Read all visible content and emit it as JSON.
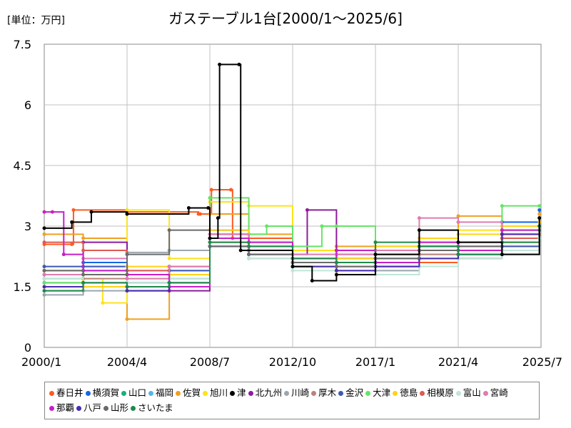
{
  "unit_label": "[単位：万円]",
  "chart_data": {
    "type": "line",
    "title": "ガステーブル1台[2000/1～2025/6]",
    "ylim": [
      0,
      7.5
    ],
    "yticks": [
      "0",
      "1.5",
      "3",
      "4.5",
      "6",
      "7.5"
    ],
    "x_tick_labels": [
      "2000/1",
      "2004/4",
      "2008/7",
      "2012/10",
      "2017/1",
      "2021/4",
      "2025/7"
    ],
    "grid": true,
    "legend_position": "bottom",
    "series": [
      {
        "name": "春日井",
        "color": "#ff5a1f",
        "points": [
          [
            "2000/1",
            2.55
          ],
          [
            "2001/6",
            2.55
          ],
          [
            "2001/7",
            3.4
          ],
          [
            "2004/4",
            3.35
          ],
          [
            "2007/12",
            3.3
          ],
          [
            "2008/1",
            3.3
          ],
          [
            "2008/7",
            3.3
          ],
          [
            "2008/8",
            3.9
          ],
          [
            "2009/8",
            3.9
          ],
          [
            "2009/9",
            2.7
          ],
          [
            "2012/10",
            2.1
          ],
          [
            "2017/1",
            2.1
          ],
          [
            "2021/4",
            2.5
          ],
          [
            "2025/6",
            3.1
          ]
        ]
      },
      {
        "name": "横須賀",
        "color": "#1565e6",
        "points": [
          [
            "2000/1",
            1.6
          ],
          [
            "2002/1",
            2.1
          ],
          [
            "2004/4",
            1.4
          ],
          [
            "2006/6",
            1.8
          ],
          [
            "2008/7",
            2.9
          ],
          [
            "2010/7",
            2.4
          ],
          [
            "2012/10",
            2.0
          ],
          [
            "2015/1",
            2.1
          ],
          [
            "2017/1",
            2.2
          ],
          [
            "2019/4",
            2.6
          ],
          [
            "2021/4",
            2.3
          ],
          [
            "2023/7",
            3.1
          ],
          [
            "2025/6",
            3.4
          ]
        ]
      },
      {
        "name": "山口",
        "color": "#17b07b",
        "points": [
          [
            "2000/1",
            1.7
          ],
          [
            "2002/1",
            1.9
          ],
          [
            "2004/4",
            1.6
          ],
          [
            "2006/6",
            1.7
          ],
          [
            "2008/7",
            2.8
          ],
          [
            "2010/7",
            2.3
          ],
          [
            "2012/10",
            2.1
          ],
          [
            "2015/1",
            2.0
          ],
          [
            "2017/1",
            2.2
          ],
          [
            "2019/4",
            2.5
          ],
          [
            "2021/4",
            2.4
          ],
          [
            "2023/7",
            2.9
          ],
          [
            "2025/6",
            3.0
          ]
        ]
      },
      {
        "name": "福岡",
        "color": "#52b6e8",
        "points": [
          [
            "2000/1",
            1.9
          ],
          [
            "2002/1",
            2.0
          ],
          [
            "2004/4",
            1.9
          ],
          [
            "2006/6",
            1.9
          ],
          [
            "2008/7",
            2.7
          ],
          [
            "2010/7",
            2.5
          ],
          [
            "2012/10",
            2.0
          ],
          [
            "2015/1",
            2.1
          ],
          [
            "2017/1",
            2.0
          ],
          [
            "2019/4",
            2.4
          ],
          [
            "2021/4",
            2.6
          ],
          [
            "2023/7",
            3.0
          ],
          [
            "2025/6",
            3.2
          ]
        ]
      },
      {
        "name": "佐賀",
        "color": "#f0a020",
        "points": [
          [
            "2000/1",
            2.8
          ],
          [
            "2002/1",
            2.7
          ],
          [
            "2004/4",
            0.7
          ],
          [
            "2006/6",
            2.0
          ],
          [
            "2008/7",
            3.3
          ],
          [
            "2010/7",
            2.8
          ],
          [
            "2012/10",
            2.2
          ],
          [
            "2015/1",
            2.5
          ],
          [
            "2017/1",
            2.3
          ],
          [
            "2019/4",
            2.6
          ],
          [
            "2021/4",
            3.25
          ],
          [
            "2023/7",
            2.7
          ],
          [
            "2025/6",
            3.3
          ]
        ]
      },
      {
        "name": "旭川",
        "color": "#ffe21a",
        "points": [
          [
            "2000/1",
            1.5
          ],
          [
            "2002/1",
            1.7
          ],
          [
            "2003/1",
            1.1
          ],
          [
            "2004/4",
            3.4
          ],
          [
            "2006/6",
            2.2
          ],
          [
            "2008/7",
            3.6
          ],
          [
            "2010/7",
            3.5
          ],
          [
            "2012/10",
            2.4
          ],
          [
            "2015/1",
            1.8
          ],
          [
            "2017/1",
            2.4
          ],
          [
            "2019/4",
            2.5
          ],
          [
            "2021/4",
            2.9
          ],
          [
            "2023/7",
            2.6
          ],
          [
            "2025/6",
            2.8
          ]
        ]
      },
      {
        "name": "津",
        "color": "#000000",
        "points": [
          [
            "2000/1",
            2.95
          ],
          [
            "2001/6",
            3.1
          ],
          [
            "2002/6",
            3.35
          ],
          [
            "2004/4",
            3.3
          ],
          [
            "2007/6",
            3.45
          ],
          [
            "2008/6",
            3.45
          ],
          [
            "2008/7",
            2.7
          ],
          [
            "2008/12",
            3.2
          ],
          [
            "2009/1",
            7.0
          ],
          [
            "2010/1",
            7.0
          ],
          [
            "2010/2",
            2.4
          ],
          [
            "2012/10",
            2.0
          ],
          [
            "2013/10",
            1.65
          ],
          [
            "2015/1",
            1.8
          ],
          [
            "2017/1",
            2.3
          ],
          [
            "2019/4",
            2.9
          ],
          [
            "2021/4",
            2.6
          ],
          [
            "2023/7",
            2.3
          ],
          [
            "2025/6",
            3.2
          ]
        ]
      },
      {
        "name": "北九州",
        "color": "#8e1b9e",
        "points": [
          [
            "2000/1",
            1.8
          ],
          [
            "2002/1",
            2.6
          ],
          [
            "2004/4",
            1.6
          ],
          [
            "2006/6",
            1.4
          ],
          [
            "2008/7",
            2.8
          ],
          [
            "2010/7",
            2.5
          ],
          [
            "2012/10",
            2.3
          ],
          [
            "2013/7",
            3.4
          ],
          [
            "2015/1",
            2.2
          ],
          [
            "2017/1",
            2.0
          ],
          [
            "2019/4",
            2.5
          ],
          [
            "2021/4",
            2.2
          ],
          [
            "2023/7",
            2.8
          ],
          [
            "2025/6",
            3.1
          ]
        ]
      },
      {
        "name": "川崎",
        "color": "#9aa6b0",
        "points": [
          [
            "2000/1",
            1.3
          ],
          [
            "2002/1",
            1.4
          ],
          [
            "2004/4",
            2.35
          ],
          [
            "2006/6",
            2.4
          ],
          [
            "2008/7",
            2.6
          ],
          [
            "2010/7",
            2.2
          ],
          [
            "2012/10",
            2.1
          ],
          [
            "2015/1",
            1.9
          ],
          [
            "2017/1",
            1.9
          ],
          [
            "2019/4",
            2.3
          ],
          [
            "2021/4",
            2.5
          ],
          [
            "2023/7",
            2.7
          ],
          [
            "2025/6",
            2.9
          ]
        ]
      },
      {
        "name": "厚木",
        "color": "#b8847a",
        "points": [
          [
            "2000/1",
            1.4
          ],
          [
            "2002/1",
            1.7
          ],
          [
            "2004/4",
            1.5
          ],
          [
            "2006/6",
            1.6
          ],
          [
            "2008/7",
            2.9
          ],
          [
            "2010/7",
            2.3
          ],
          [
            "2012/10",
            2.0
          ],
          [
            "2015/1",
            2.2
          ],
          [
            "2017/1",
            2.4
          ],
          [
            "2019/4",
            2.3
          ],
          [
            "2021/4",
            2.2
          ],
          [
            "2023/7",
            2.6
          ],
          [
            "2025/6",
            2.8
          ]
        ]
      },
      {
        "name": "金沢",
        "color": "#3c58b8",
        "points": [
          [
            "2000/1",
            2.0
          ],
          [
            "2002/1",
            2.0
          ],
          [
            "2004/4",
            1.8
          ],
          [
            "2006/6",
            1.9
          ],
          [
            "2008/7",
            2.5
          ],
          [
            "2010/7",
            2.6
          ],
          [
            "2012/10",
            2.2
          ],
          [
            "2015/1",
            2.3
          ],
          [
            "2017/1",
            2.1
          ],
          [
            "2019/4",
            2.5
          ],
          [
            "2021/4",
            2.3
          ],
          [
            "2023/7",
            2.5
          ],
          [
            "2025/6",
            3.0
          ]
        ]
      },
      {
        "name": "大津",
        "color": "#66e466",
        "points": [
          [
            "2000/1",
            1.6
          ],
          [
            "2002/1",
            1.8
          ],
          [
            "2004/4",
            1.7
          ],
          [
            "2006/6",
            1.5
          ],
          [
            "2008/7",
            3.7
          ],
          [
            "2010/7",
            2.8
          ],
          [
            "2011/6",
            3.0
          ],
          [
            "2012/10",
            2.5
          ],
          [
            "2014/4",
            3.0
          ],
          [
            "2015/1",
            3.0
          ],
          [
            "2017/1",
            2.5
          ],
          [
            "2019/4",
            2.2
          ],
          [
            "2021/4",
            2.3
          ],
          [
            "2023/7",
            3.5
          ],
          [
            "2025/6",
            3.5
          ]
        ]
      },
      {
        "name": "徳島",
        "color": "#ffd21a",
        "points": [
          [
            "2000/1",
            1.9
          ],
          [
            "2002/1",
            1.5
          ],
          [
            "2004/4",
            2.0
          ],
          [
            "2006/6",
            1.8
          ],
          [
            "2008/7",
            2.9
          ],
          [
            "2010/7",
            2.4
          ],
          [
            "2012/10",
            2.0
          ],
          [
            "2015/1",
            2.2
          ],
          [
            "2017/1",
            2.5
          ],
          [
            "2019/4",
            2.7
          ],
          [
            "2021/4",
            2.8
          ],
          [
            "2023/7",
            3.0
          ],
          [
            "2025/6",
            3.1
          ]
        ]
      },
      {
        "name": "相模原",
        "color": "#e05a4f",
        "points": [
          [
            "2000/1",
            2.6
          ],
          [
            "2002/1",
            2.4
          ],
          [
            "2004/4",
            1.9
          ],
          [
            "2006/6",
            2.0
          ],
          [
            "2008/7",
            2.6
          ],
          [
            "2010/7",
            2.4
          ],
          [
            "2012/10",
            2.1
          ],
          [
            "2015/1",
            2.0
          ],
          [
            "2017/1",
            2.3
          ],
          [
            "2019/4",
            2.4
          ],
          [
            "2021/4",
            2.6
          ],
          [
            "2023/7",
            2.7
          ],
          [
            "2025/6",
            3.0
          ]
        ]
      },
      {
        "name": "富山",
        "color": "#bfe6d8",
        "points": [
          [
            "2000/1",
            1.7
          ],
          [
            "2002/1",
            1.8
          ],
          [
            "2004/4",
            1.6
          ],
          [
            "2006/6",
            1.7
          ],
          [
            "2008/7",
            2.6
          ],
          [
            "2010/7",
            2.2
          ],
          [
            "2012/10",
            1.9
          ],
          [
            "2015/1",
            2.0
          ],
          [
            "2017/1",
            1.8
          ],
          [
            "2019/4",
            2.0
          ],
          [
            "2021/4",
            2.2
          ],
          [
            "2023/7",
            2.4
          ],
          [
            "2025/6",
            2.7
          ]
        ]
      },
      {
        "name": "宮崎",
        "color": "#e07bb0",
        "points": [
          [
            "2000/1",
            1.8
          ],
          [
            "2002/1",
            2.2
          ],
          [
            "2004/4",
            1.7
          ],
          [
            "2006/6",
            2.0
          ],
          [
            "2008/7",
            2.8
          ],
          [
            "2010/7",
            2.4
          ],
          [
            "2012/10",
            2.3
          ],
          [
            "2015/1",
            2.3
          ],
          [
            "2017/1",
            2.4
          ],
          [
            "2019/4",
            3.2
          ],
          [
            "2021/4",
            3.1
          ],
          [
            "2023/7",
            2.8
          ],
          [
            "2025/6",
            2.9
          ]
        ]
      },
      {
        "name": "那覇",
        "color": "#c81ec8",
        "points": [
          [
            "2000/1",
            3.35
          ],
          [
            "2000/6",
            3.35
          ],
          [
            "2001/1",
            2.3
          ],
          [
            "2002/1",
            1.9
          ],
          [
            "2004/4",
            1.8
          ],
          [
            "2006/6",
            1.5
          ],
          [
            "2008/7",
            2.7
          ],
          [
            "2010/7",
            2.6
          ],
          [
            "2012/10",
            2.2
          ],
          [
            "2015/1",
            2.4
          ],
          [
            "2017/1",
            2.1
          ],
          [
            "2019/4",
            2.6
          ],
          [
            "2021/4",
            2.4
          ],
          [
            "2023/7",
            2.9
          ],
          [
            "2025/6",
            3.0
          ]
        ]
      },
      {
        "name": "八戸",
        "color": "#4a2cb0",
        "points": [
          [
            "2000/1",
            1.5
          ],
          [
            "2002/1",
            1.6
          ],
          [
            "2004/4",
            1.4
          ],
          [
            "2006/6",
            1.6
          ],
          [
            "2008/7",
            2.5
          ],
          [
            "2010/7",
            2.3
          ],
          [
            "2012/10",
            2.0
          ],
          [
            "2015/1",
            1.9
          ],
          [
            "2017/1",
            2.0
          ],
          [
            "2019/4",
            2.2
          ],
          [
            "2021/4",
            2.3
          ],
          [
            "2023/7",
            2.8
          ],
          [
            "2025/6",
            3.0
          ]
        ]
      },
      {
        "name": "山形",
        "color": "#6a6a6a",
        "points": [
          [
            "2000/1",
            1.9
          ],
          [
            "2002/1",
            1.8
          ],
          [
            "2004/4",
            2.3
          ],
          [
            "2006/6",
            2.9
          ],
          [
            "2008/7",
            2.5
          ],
          [
            "2010/7",
            2.3
          ],
          [
            "2012/10",
            2.1
          ],
          [
            "2015/1",
            2.0
          ],
          [
            "2017/1",
            2.2
          ],
          [
            "2019/4",
            2.4
          ],
          [
            "2021/4",
            2.5
          ],
          [
            "2023/7",
            2.3
          ],
          [
            "2025/6",
            2.9
          ]
        ]
      },
      {
        "name": "さいたま",
        "color": "#1e8a4a",
        "points": [
          [
            "2000/1",
            1.4
          ],
          [
            "2002/1",
            1.6
          ],
          [
            "2004/4",
            1.5
          ],
          [
            "2006/6",
            1.6
          ],
          [
            "2008/7",
            2.6
          ],
          [
            "2010/7",
            2.5
          ],
          [
            "2012/10",
            2.2
          ],
          [
            "2015/1",
            2.1
          ],
          [
            "2017/1",
            2.6
          ],
          [
            "2019/4",
            2.5
          ],
          [
            "2021/4",
            2.3
          ],
          [
            "2023/7",
            2.6
          ],
          [
            "2025/6",
            3.0
          ]
        ]
      }
    ]
  }
}
